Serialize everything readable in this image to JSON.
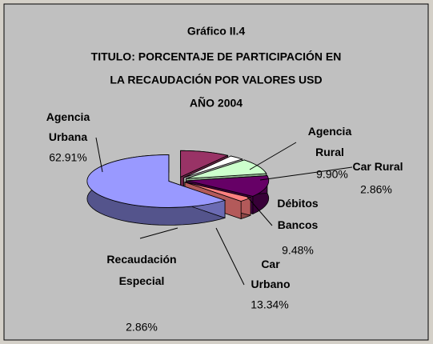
{
  "chart_data": {
    "type": "pie",
    "title": [
      "Gráfico II.4",
      "TITULO: PORCENTAJE DE PARTICIPACIÓN EN",
      "LA RECAUDACIÓN POR VALORES USD",
      "AÑO 2004"
    ],
    "categories": [
      "Agencia Rural",
      "Car Rural",
      "Débitos Bancos",
      "Car Urbano",
      "Recaudación Especial",
      "Agencia Urbana"
    ],
    "values": [
      9.9,
      2.86,
      9.48,
      13.34,
      2.86,
      62.91
    ],
    "value_labels": [
      "9.90%",
      "2.86%",
      "9.48%",
      "13.34%",
      "2.86%",
      "62.91%"
    ],
    "colors": [
      "#993366",
      "#ffffff",
      "#ccffcc",
      "#660066",
      "#ff8080",
      "#9999ff"
    ]
  }
}
